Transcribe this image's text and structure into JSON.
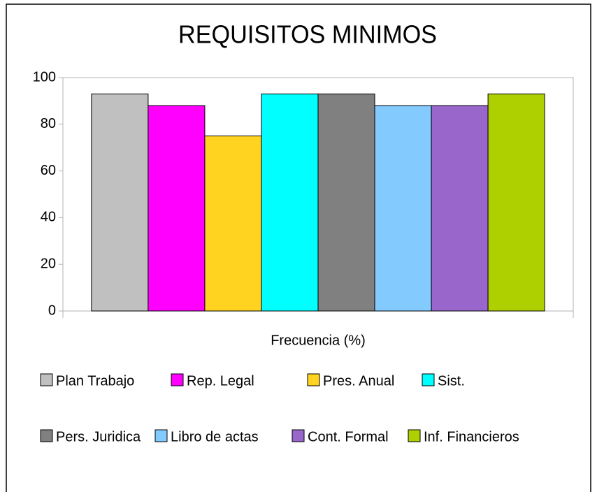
{
  "chart_data": {
    "type": "bar",
    "title": "REQUISITOS MINIMOS",
    "categories": [
      "Frecuencia (%)"
    ],
    "series": [
      {
        "name": "Plan Trabajo",
        "color": "#c0c0c0",
        "values": [
          93
        ]
      },
      {
        "name": "Rep. Legal",
        "color": "#ff00ff",
        "values": [
          88
        ]
      },
      {
        "name": "Pres. Anual",
        "color": "#ffd320",
        "values": [
          75
        ]
      },
      {
        "name": "Sist.",
        "color": "#00ffff",
        "values": [
          93
        ]
      },
      {
        "name": "Pers. Juridica",
        "color": "#808080",
        "values": [
          93
        ]
      },
      {
        "name": "Libro de actas",
        "color": "#83caff",
        "values": [
          88
        ]
      },
      {
        "name": "Cont. Formal",
        "color": "#9966cc",
        "values": [
          88
        ]
      },
      {
        "name": "Inf. Financieros",
        "color": "#aecf00",
        "values": [
          93
        ]
      }
    ],
    "ylim": [
      0,
      100
    ],
    "yticks": [
      0,
      20,
      40,
      60,
      80,
      100
    ],
    "legend": "bottom"
  }
}
